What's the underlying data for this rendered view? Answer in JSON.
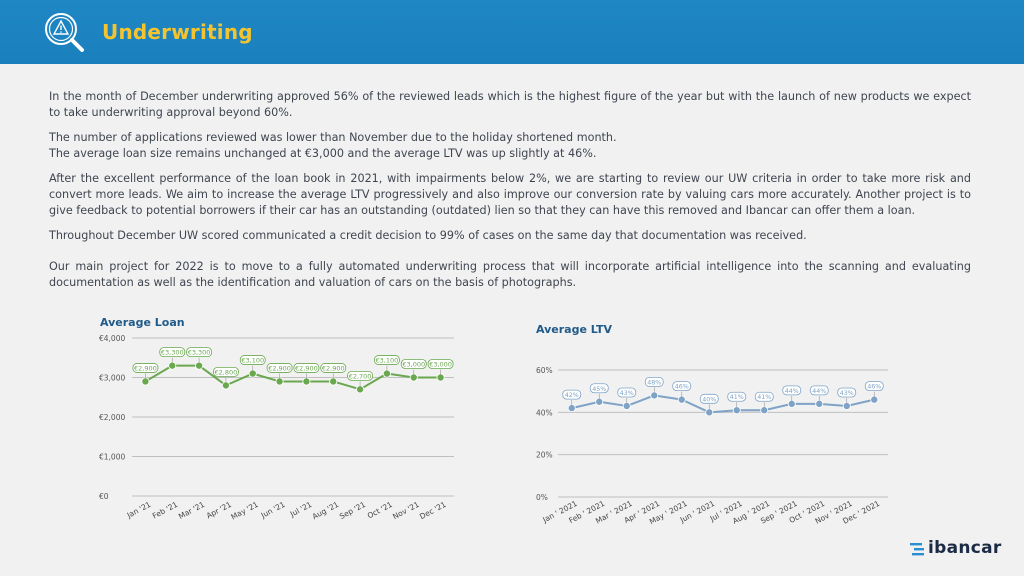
{
  "header": {
    "title": "Underwriting",
    "icon": "search-warning-icon",
    "background": "#1a80bd",
    "title_color": "#f4c430"
  },
  "paragraphs": [
    "In the month of December underwriting approved 56% of the reviewed leads which is the highest figure of the year but with the launch of new products we expect to take underwriting approval beyond 60%.",
    "The number of applications reviewed was lower than November due to the holiday shortened month.",
    "The average loan size remains unchanged at €3,000 and the average LTV was up slightly at 46%.",
    "After the excellent performance of the loan book in 2021, with impairments below 2%, we are starting to review our UW criteria in order to take more risk and convert more leads. We aim to increase the average LTV progressively and also improve our conversion rate by valuing cars more accurately. Another project is to give feedback to potential borrowers if their car has an outstanding (outdated) lien so that they can have this removed and Ibancar can offer them a loan.",
    "Throughout December UW scored communicated a credit decision to 99% of cases on the same day that documentation was received.",
    "Our main project for 2022 is to move to a fully automated underwriting process that will incorporate artificial intelligence into the scanning and evaluating documentation as well as the identification and valuation of cars on the basis of photographs."
  ],
  "chart_data": [
    {
      "type": "line",
      "title": "Average Loan",
      "categories": [
        "Jan '21",
        "Feb '21",
        "Mar '21",
        "Apr '21",
        "May '21",
        "Jun '21",
        "Jul '21",
        "Aug '21",
        "Sep '21",
        "Oct '21",
        "Nov '21",
        "Dec '21"
      ],
      "values": [
        2900,
        3300,
        3300,
        2800,
        3100,
        2900,
        2900,
        2900,
        2700,
        3100,
        3000,
        3000
      ],
      "labels": [
        "€2,900",
        "€3,300",
        "€3,300",
        "€2,800",
        "€3,100",
        "€2,900",
        "€2,900",
        "€2,900",
        "€2,700",
        "€3,100",
        "€3,000",
        "€3,000"
      ],
      "ylim": [
        0,
        4000
      ],
      "yticks": [
        0,
        1000,
        2000,
        3000,
        4000
      ],
      "ytick_labels": [
        "€0",
        "€1,000",
        "€2,000",
        "€3,000",
        "€4,000"
      ],
      "grid": true,
      "color": "#6aa84f"
    },
    {
      "type": "line",
      "title": "Average LTV",
      "categories": [
        "Jan ' 2021",
        "Feb ' 2021",
        "Mar ' 2021",
        "Apr ' 2021",
        "May ' 2021",
        "Jun ' 2021",
        "Jul ' 2021",
        "Aug ' 2021",
        "Sep ' 2021",
        "Oct ' 2021",
        "Nov ' 2021",
        "Dec ' 2021"
      ],
      "values": [
        42,
        45,
        43,
        48,
        46,
        40,
        41,
        41,
        44,
        44,
        43,
        46
      ],
      "labels": [
        "42%",
        "45%",
        "43%",
        "48%",
        "46%",
        "40%",
        "41%",
        "41%",
        "44%",
        "44%",
        "43%",
        "46%"
      ],
      "ylim": [
        0,
        60
      ],
      "yticks": [
        0,
        20,
        40,
        60
      ],
      "ytick_labels": [
        "0%",
        "20%",
        "40%",
        "60%"
      ],
      "grid": true,
      "color": "#7ea3c6"
    }
  ],
  "brand": {
    "name": "ibancar",
    "color": "#1c2b45",
    "accent": "#2a8fd0"
  }
}
